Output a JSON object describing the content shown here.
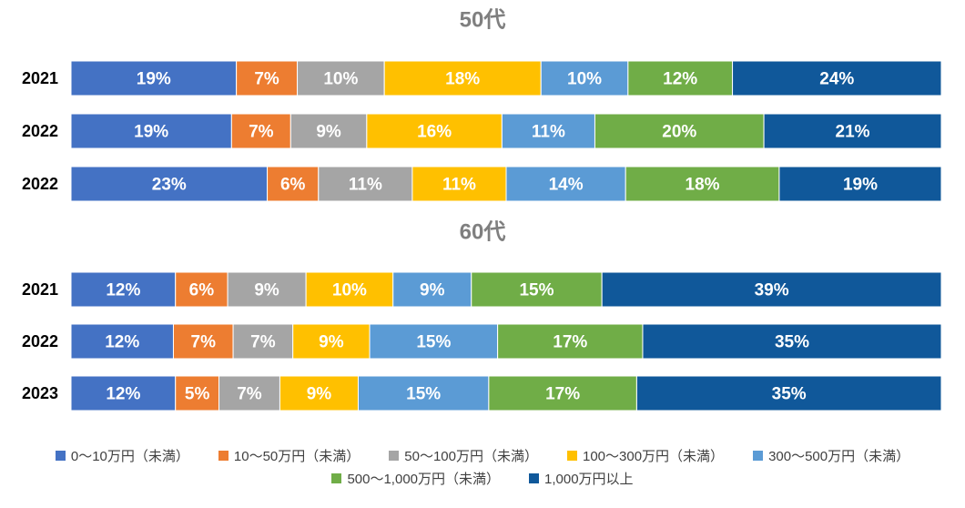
{
  "chart_data": [
    {
      "type": "bar",
      "stacked": true,
      "orientation": "horizontal",
      "normalized_to": 100,
      "title": "50代",
      "categories": [
        "2021",
        "2022",
        "2022"
      ],
      "series": [
        {
          "name": "0～10万円（未満）",
          "color": "#4472C4",
          "values": [
            19,
            19,
            23
          ]
        },
        {
          "name": "10～50万円（未満）",
          "color": "#ED7D31",
          "values": [
            7,
            7,
            6
          ]
        },
        {
          "name": "50～100万円（未満）",
          "color": "#A5A5A5",
          "values": [
            10,
            9,
            11
          ]
        },
        {
          "name": "100～300万円（未満）",
          "color": "#FFC000",
          "values": [
            18,
            16,
            11
          ]
        },
        {
          "name": "300～500万円（未満）",
          "color": "#5B9BD5",
          "values": [
            10,
            11,
            14
          ]
        },
        {
          "name": "500～1,000万円（未満）",
          "color": "#70AD47",
          "values": [
            12,
            20,
            18
          ]
        },
        {
          "name": "1,000万円以上",
          "color": "#10589A",
          "values": [
            24,
            21,
            19
          ]
        }
      ]
    },
    {
      "type": "bar",
      "stacked": true,
      "orientation": "horizontal",
      "normalized_to": 100,
      "title": "60代",
      "categories": [
        "2021",
        "2022",
        "2023"
      ],
      "series": [
        {
          "name": "0～10万円（未満）",
          "color": "#4472C4",
          "values": [
            12,
            12,
            12
          ]
        },
        {
          "name": "10～50万円（未満）",
          "color": "#ED7D31",
          "values": [
            6,
            7,
            5
          ]
        },
        {
          "name": "50～100万円（未満）",
          "color": "#A5A5A5",
          "values": [
            9,
            7,
            7
          ]
        },
        {
          "name": "100～300万円（未満）",
          "color": "#FFC000",
          "values": [
            10,
            9,
            9
          ]
        },
        {
          "name": "300～500万円（未満）",
          "color": "#5B9BD5",
          "values": [
            9,
            15,
            15
          ]
        },
        {
          "name": "500～1,000万円（未満）",
          "color": "#70AD47",
          "values": [
            15,
            17,
            17
          ]
        },
        {
          "name": "1,000万円以上",
          "color": "#10589A",
          "values": [
            39,
            35,
            35
          ]
        }
      ]
    }
  ],
  "legend": {
    "position": "bottom",
    "rows": [
      [
        "0～10万円（未満）",
        "10～50万円（未満）",
        "50～100万円（未満）",
        "100～300万円（未満）",
        "300～500万円（未満）"
      ],
      [
        "500～1,000万円（未満）",
        "1,000万円以上"
      ]
    ]
  }
}
